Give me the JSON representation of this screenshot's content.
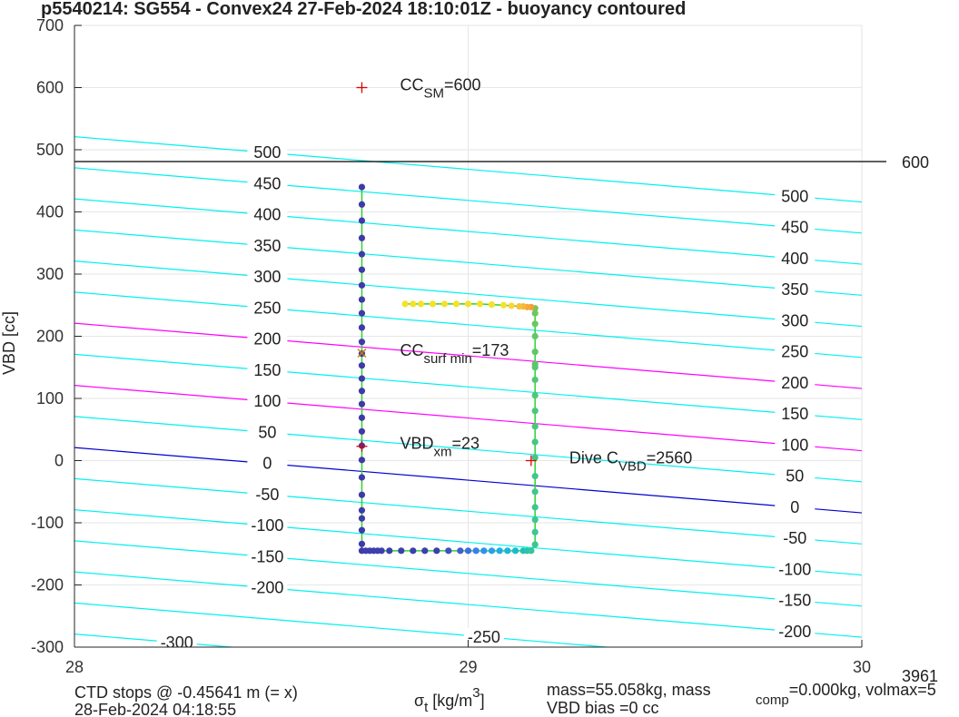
{
  "chart_data": {
    "type": "scatter",
    "title": "p5540214: SG554 - Convex24 27-Feb-2024 18:10:01Z - buoyancy contoured",
    "x_label": {
      "main": "σ",
      "sub": "t",
      "rest": " [kg/m",
      "sup": "3",
      "end": "]"
    },
    "y_label": "VBD [cc]",
    "xlim": [
      28,
      30
    ],
    "ylim": [
      -300,
      700
    ],
    "xticks": [
      28,
      29,
      30
    ],
    "yticks": [
      -300,
      -200,
      -100,
      0,
      100,
      200,
      300,
      400,
      500,
      600,
      700
    ],
    "grid": true,
    "contours": {
      "x": [
        28,
        30
      ],
      "lines": [
        {
          "level": 500,
          "y": [
            521,
            416
          ],
          "color": "#00f0f0"
        },
        {
          "level": 450,
          "y": [
            471,
            366
          ],
          "color": "#00f0f0"
        },
        {
          "level": 400,
          "y": [
            421,
            316
          ],
          "color": "#00f0f0"
        },
        {
          "level": 350,
          "y": [
            371,
            266
          ],
          "color": "#00f0f0"
        },
        {
          "level": 300,
          "y": [
            321,
            216
          ],
          "color": "#00f0f0"
        },
        {
          "level": 250,
          "y": [
            271,
            166
          ],
          "color": "#00f0f0"
        },
        {
          "level": 200,
          "y": [
            221,
            116
          ],
          "color": "#ff00ff"
        },
        {
          "level": 150,
          "y": [
            171,
            66
          ],
          "color": "#00f0f0"
        },
        {
          "level": 100,
          "y": [
            121,
            16
          ],
          "color": "#ff00ff"
        },
        {
          "level": 50,
          "y": [
            71,
            -34
          ],
          "color": "#00f0f0"
        },
        {
          "level": 0,
          "y": [
            21,
            -84
          ],
          "color": "#0000cc"
        },
        {
          "level": -50,
          "y": [
            -29,
            -134
          ],
          "color": "#00f0f0"
        },
        {
          "level": -100,
          "y": [
            -79,
            -184
          ],
          "color": "#00f0f0"
        },
        {
          "level": -150,
          "y": [
            -129,
            -234
          ],
          "color": "#00f0f0"
        },
        {
          "level": -200,
          "y": [
            -179,
            -284
          ],
          "color": "#00f0f0"
        },
        {
          "level": -250,
          "y": [
            -229,
            -334
          ],
          "color": "#00f0f0"
        },
        {
          "level": -300,
          "y": [
            -279,
            -384
          ],
          "color": "#00f0f0"
        }
      ]
    },
    "hline": {
      "y": 481,
      "label": "600",
      "color": "#000000"
    },
    "series": [
      {
        "line_color": "#2bd52b",
        "x": [
          28.73,
          28.73,
          28.73,
          28.73,
          28.73,
          28.73,
          28.73,
          28.73,
          28.73,
          28.73,
          28.73,
          28.73,
          28.73,
          28.73,
          28.73,
          28.73,
          28.73,
          28.73,
          28.73,
          28.73,
          28.73,
          28.73,
          28.73,
          28.73,
          28.73,
          28.73,
          28.73,
          28.74,
          28.75,
          28.76,
          28.77,
          28.78,
          28.8,
          28.83,
          28.86,
          28.89,
          28.92,
          28.95,
          28.98,
          29.0,
          29.02,
          29.04,
          29.06,
          29.08,
          29.1,
          29.12,
          29.14,
          29.15,
          29.16,
          29.17,
          29.17,
          29.17,
          29.17,
          29.17,
          29.17,
          29.17,
          29.17,
          29.17,
          29.17,
          29.17,
          29.17,
          29.17,
          29.17,
          29.17,
          29.17,
          29.17,
          29.17,
          29.17,
          29.16,
          29.15,
          29.14,
          29.13,
          29.11,
          29.09,
          29.06,
          29.03,
          29.0,
          28.97,
          28.94,
          28.91,
          28.88,
          28.86,
          28.84
        ],
        "values": [
          440,
          412,
          386,
          358,
          332,
          307,
          282,
          259,
          237,
          214,
          191,
          172,
          153,
          132,
          112,
          91,
          69,
          47,
          24,
          1,
          -27,
          -55,
          -80,
          -93,
          -112,
          -134,
          -145,
          -145,
          -145,
          -145,
          -145,
          -145,
          -145,
          -145,
          -145,
          -145,
          -145,
          -145,
          -145,
          -145,
          -145,
          -145,
          -145,
          -145,
          -145,
          -145,
          -145,
          -145,
          -145,
          -135,
          -115,
          -95,
          -75,
          -50,
          -25,
          5,
          30,
          55,
          80,
          105,
          130,
          150,
          155,
          175,
          200,
          220,
          237,
          245,
          247,
          247,
          248,
          248,
          249,
          250,
          251,
          252,
          252,
          252,
          252,
          252,
          252,
          252,
          252
        ],
        "colors": [
          "#3f3aa8",
          "#3f3aa8",
          "#3f3aa8",
          "#3f3aa8",
          "#3f3aa8",
          "#3f3aa8",
          "#3f3aa8",
          "#3f3aa8",
          "#3f3aa8",
          "#3f3aa8",
          "#3f3aa8",
          "#3f3aa8",
          "#3f3aa8",
          "#3f3aa8",
          "#3f3aa8",
          "#3f3aa8",
          "#3f3aa8",
          "#3f3aa8",
          "#3f3aa8",
          "#3f3aa8",
          "#3f3aa8",
          "#3f3aa8",
          "#3f3aa8",
          "#3f3aa8",
          "#3f3aa8",
          "#3f3aa8",
          "#3f3aa8",
          "#3e3fae",
          "#3e3fae",
          "#3e3fae",
          "#3e3fae",
          "#3e3fae",
          "#3e3fae",
          "#3e3fae",
          "#3e3fae",
          "#3e3fae",
          "#3e3fae",
          "#4050c0",
          "#4060d0",
          "#3f6ee0",
          "#3a7ef0",
          "#3090f0",
          "#2a9ff0",
          "#1eadea",
          "#1ab6de",
          "#18bccc",
          "#22c0b8",
          "#2cc3ab",
          "#35c59f",
          "#3ec596",
          "#3ec596",
          "#40c592",
          "#40c592",
          "#42c58e",
          "#42c58e",
          "#44c58a",
          "#46c586",
          "#48c682",
          "#4cc67e",
          "#50c67a",
          "#54c676",
          "#58c672",
          "#5cc66e",
          "#60c66a",
          "#66c666",
          "#6cc662",
          "#72c65e",
          "#78c65a",
          "#f0a13a",
          "#f4a83a",
          "#f7b63a",
          "#f5c23b",
          "#fad53a",
          "#f5e12a",
          "#f5e12a",
          "#f5e12a",
          "#f5e12a",
          "#f5e12a",
          "#f5e12a",
          "#f5e12a",
          "#f5e12a",
          "#f5e12a",
          "#f5e12a"
        ]
      }
    ],
    "markers": [
      {
        "x": 28.73,
        "y": 600,
        "symbol": "+",
        "color": "#e00000",
        "label": {
          "main": "CC",
          "sub": "SM",
          "rest": "=600"
        }
      },
      {
        "x": 28.73,
        "y": 173,
        "symbol": "x",
        "color": "#cc7a00",
        "label": {
          "main": "CC",
          "sub": "surf min",
          "rest": "=173"
        }
      },
      {
        "x": 28.73,
        "y": 23,
        "symbol": "+",
        "color": "#e00000",
        "label": {
          "main": "VBD",
          "sub": "xm",
          "rest": "=23"
        }
      },
      {
        "x": 29.16,
        "y": 0,
        "symbol": "+",
        "color": "#e00000",
        "label": {
          "main": "Dive C",
          "sub": "VBD",
          "rest": "=2560"
        }
      }
    ],
    "footer": {
      "left": [
        "CTD stops @ -0.45641 m (= x)",
        "28-Feb-2024 04:18:55"
      ],
      "mass": {
        "main": "mass=55.058kg, mass",
        "sub": "comp",
        "rest": "=0.000kg, volmax=5",
        "sup": "3961"
      },
      "bias": "VBD bias =0 cc"
    }
  }
}
